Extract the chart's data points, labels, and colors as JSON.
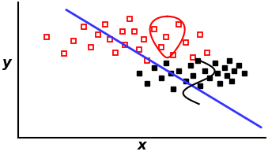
{
  "red_squares": [
    [
      0.12,
      0.78
    ],
    [
      0.19,
      0.65
    ],
    [
      0.23,
      0.75
    ],
    [
      0.27,
      0.86
    ],
    [
      0.3,
      0.7
    ],
    [
      0.33,
      0.8
    ],
    [
      0.36,
      0.88
    ],
    [
      0.38,
      0.76
    ],
    [
      0.4,
      0.66
    ],
    [
      0.43,
      0.82
    ],
    [
      0.44,
      0.72
    ],
    [
      0.46,
      0.92
    ],
    [
      0.48,
      0.82
    ],
    [
      0.5,
      0.68
    ],
    [
      0.52,
      0.76
    ],
    [
      0.53,
      0.6
    ],
    [
      0.56,
      0.84
    ],
    [
      0.59,
      0.7
    ],
    [
      0.61,
      0.78
    ],
    [
      0.64,
      0.64
    ],
    [
      0.66,
      0.88
    ],
    [
      0.69,
      0.74
    ],
    [
      0.72,
      0.62
    ],
    [
      0.75,
      0.8
    ],
    [
      0.78,
      0.66
    ]
  ],
  "black_squares": [
    [
      0.5,
      0.5
    ],
    [
      0.53,
      0.42
    ],
    [
      0.56,
      0.54
    ],
    [
      0.59,
      0.46
    ],
    [
      0.61,
      0.58
    ],
    [
      0.63,
      0.5
    ],
    [
      0.64,
      0.38
    ],
    [
      0.66,
      0.52
    ],
    [
      0.69,
      0.44
    ],
    [
      0.71,
      0.56
    ],
    [
      0.72,
      0.48
    ],
    [
      0.74,
      0.6
    ],
    [
      0.75,
      0.4
    ],
    [
      0.77,
      0.52
    ],
    [
      0.79,
      0.46
    ],
    [
      0.81,
      0.58
    ],
    [
      0.82,
      0.5
    ],
    [
      0.83,
      0.42
    ],
    [
      0.85,
      0.54
    ],
    [
      0.86,
      0.48
    ],
    [
      0.87,
      0.6
    ],
    [
      0.88,
      0.44
    ],
    [
      0.89,
      0.52
    ],
    [
      0.91,
      0.56
    ],
    [
      0.93,
      0.5
    ]
  ],
  "line_x_start": 0.2,
  "line_x_end": 1.0,
  "line_y_start": 0.99,
  "line_y_end": 0.08,
  "red_color": "#ff0000",
  "black_color": "#000000",
  "blue_color": "#3333ff",
  "marker_size": 5,
  "xlabel": "x",
  "ylabel": "y",
  "xlim": [
    0.0,
    1.02
  ],
  "ylim": [
    0.0,
    1.05
  ]
}
